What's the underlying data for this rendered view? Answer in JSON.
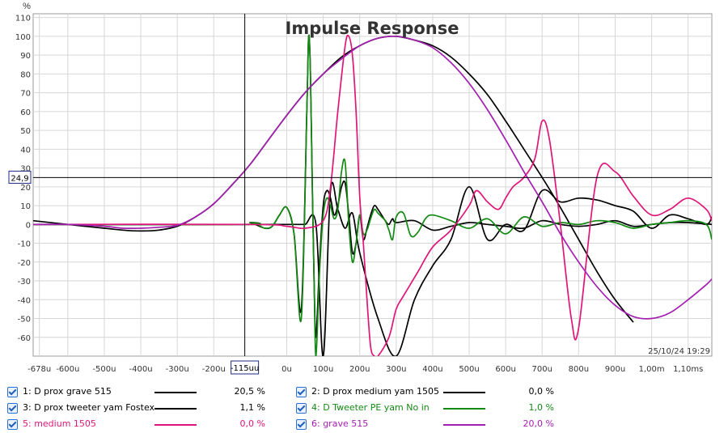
{
  "chart_data": {
    "type": "line",
    "title": "Impulse Response",
    "ylabel": "%",
    "xlim": [
      -0.000695,
      0.001165
    ],
    "ylim": [
      -70,
      112
    ],
    "grid": true,
    "x_ticks": [
      {
        "v": -0.000678,
        "label": "-678u"
      },
      {
        "v": -0.0006,
        "label": "-600u"
      },
      {
        "v": -0.0005,
        "label": "-500u"
      },
      {
        "v": -0.0004,
        "label": "-400u"
      },
      {
        "v": -0.0003,
        "label": "-300u"
      },
      {
        "v": -0.0002,
        "label": "-200u"
      },
      {
        "v": 0,
        "label": "0u"
      },
      {
        "v": 0.0001,
        "label": "100u"
      },
      {
        "v": 0.0002,
        "label": "200u"
      },
      {
        "v": 0.0003,
        "label": "300u"
      },
      {
        "v": 0.0004,
        "label": "400u"
      },
      {
        "v": 0.0005,
        "label": "500u"
      },
      {
        "v": 0.0006,
        "label": "600u"
      },
      {
        "v": 0.0007,
        "label": "700u"
      },
      {
        "v": 0.0008,
        "label": "800u"
      },
      {
        "v": 0.0009,
        "label": "900u"
      },
      {
        "v": 0.001,
        "label": "1,00m"
      },
      {
        "v": 0.0011,
        "label": "1,10ms"
      }
    ],
    "y_ticks": [
      110,
      100,
      90,
      80,
      70,
      60,
      50,
      40,
      30,
      20,
      10,
      0,
      -10,
      -20,
      -30,
      -40,
      -50,
      -60
    ],
    "cursor": {
      "x": -0.000115,
      "x_label": "-115uu",
      "y": 24.9,
      "y_label": "24,9"
    },
    "timestamp": "25/10/24 19:29",
    "series": [
      {
        "name": "1: D prox grave 515",
        "color": "#000000",
        "value_label": "20,5 %",
        "x": [
          -0.000695,
          -0.0006,
          -0.0005,
          -0.00045,
          -0.0004,
          -0.00035,
          -0.0003,
          -0.00025,
          -0.0002,
          -0.00015,
          -0.0001,
          -5e-05,
          0,
          5e-05,
          0.0001,
          0.00015,
          0.0002,
          0.00025,
          0.0003,
          0.00035,
          0.0004,
          0.00045,
          0.0005,
          0.00055,
          0.0006,
          0.00065,
          0.0007,
          0.00075,
          0.0008,
          0.00085,
          0.0009,
          0.00095
        ],
        "y": [
          2,
          0,
          -2,
          -3,
          -3.5,
          -3,
          -1,
          4,
          11,
          21,
          32,
          45,
          58,
          70,
          80,
          89,
          95,
          99,
          100,
          98,
          95,
          89,
          80,
          69,
          55,
          40,
          25,
          9,
          -8,
          -25,
          -40,
          -52
        ]
      },
      {
        "name": "2: D prox medium yam 1505",
        "color": "#000000",
        "value_label": "0,0 %",
        "x": [
          -0.000695,
          -0.0002,
          -0.0001,
          -5e-05,
          0,
          2e-05,
          5e-05,
          8e-05,
          0.0001,
          0.00012,
          0.00014,
          0.00016,
          0.00018,
          0.0002,
          0.00025,
          0.0003,
          0.00035,
          0.0004,
          0.00045,
          0.0005,
          0.00055,
          0.0006,
          0.00065,
          0.0007,
          0.00075,
          0.0008,
          0.00085,
          0.0009,
          0.00095,
          0.001,
          0.00105,
          0.0011,
          0.00115,
          0.001165
        ],
        "y": [
          0,
          0,
          0,
          0,
          0,
          0,
          0,
          0,
          -70,
          18,
          8,
          -2,
          6,
          -15,
          -50,
          -70,
          -40,
          -22,
          -8,
          20,
          -8,
          0,
          -3,
          18,
          12,
          14,
          13,
          10,
          7,
          -2,
          5,
          3,
          0,
          4
        ]
      },
      {
        "name": "3: D prox tweeter yam Fostex",
        "color": "#000000",
        "value_label": "1,1 %",
        "x": [
          -0.000695,
          -0.00012,
          -0.0001,
          -6e-05,
          -4e-05,
          -2e-05,
          0,
          2e-05,
          4e-05,
          5.5e-05,
          6e-05,
          6.5e-05,
          7e-05,
          7.5e-05,
          8e-05,
          9e-05,
          0.0001,
          0.00011,
          0.00012,
          0.00013,
          0.00014,
          0.00015,
          0.00016,
          0.00017,
          0.00018,
          0.00019,
          0.0002,
          0.00021,
          0.00022,
          0.00023,
          0.00024,
          0.00025,
          0.00026,
          0.00027,
          0.00028,
          0.00029,
          0.0003,
          0.00035,
          0.0004,
          0.00045,
          0.0005,
          0.00055,
          0.0006,
          0.00065,
          0.0007,
          0.00075,
          0.0008,
          0.00085,
          0.0009,
          0.00095,
          0.001,
          0.00105,
          0.0011,
          0.001165
        ],
        "y": [
          0,
          0,
          1,
          -2,
          -1,
          5,
          9,
          -5,
          -45,
          60,
          100,
          80,
          20,
          -30,
          -60,
          -20,
          10,
          18,
          14,
          5,
          10,
          20,
          22,
          5,
          -15,
          -10,
          5,
          -8,
          -2,
          5,
          10,
          8,
          5,
          2,
          0,
          3,
          1,
          2,
          -3,
          -1,
          1,
          0,
          -1,
          -2,
          2,
          0,
          -1,
          0,
          2,
          -1,
          0,
          1,
          1,
          0
        ]
      },
      {
        "name": "4: D Tweeter PE yam No in",
        "color": "#138a13",
        "value_label": "1,0 %",
        "x": [
          -0.000695,
          -0.00012,
          -0.0001,
          -8e-05,
          -6e-05,
          -4e-05,
          -2e-05,
          0,
          2e-05,
          4e-05,
          5.5e-05,
          6e-05,
          6.5e-05,
          7e-05,
          7.5e-05,
          8e-05,
          9e-05,
          0.0001,
          0.00011,
          0.00012,
          0.00013,
          0.00014,
          0.00015,
          0.00016,
          0.00017,
          0.00018,
          0.00019,
          0.0002,
          0.00021,
          0.00022,
          0.00023,
          0.00024,
          0.00025,
          0.00026,
          0.00027,
          0.00028,
          0.00029,
          0.0003,
          0.00032,
          0.00034,
          0.00036,
          0.00038,
          0.0004,
          0.00045,
          0.0005,
          0.00055,
          0.0006,
          0.00065,
          0.0007,
          0.00075,
          0.0008,
          0.00085,
          0.0009,
          0.00095,
          0.001,
          0.00105,
          0.0011,
          0.00115,
          0.001165
        ],
        "y": [
          0,
          0,
          1,
          0,
          -2,
          -1,
          5,
          9,
          -5,
          -50,
          60,
          100,
          80,
          20,
          -30,
          -70,
          -25,
          5,
          14,
          10,
          3,
          8,
          28,
          33,
          0,
          -20,
          -10,
          5,
          -5,
          -3,
          3,
          8,
          6,
          4,
          2,
          -3,
          -8,
          4,
          6,
          -6,
          -4,
          3,
          5,
          2,
          -2,
          3,
          -5,
          4,
          -1,
          1,
          0,
          2,
          1,
          -2,
          0,
          1,
          2,
          0,
          -8
        ]
      },
      {
        "name": "5: medium 1505",
        "color": "#e0157a",
        "value_label": "0,0 %",
        "x": [
          -0.000695,
          -0.0001,
          0,
          5e-05,
          0.0001,
          0.00012,
          0.00014,
          0.00016,
          0.00017,
          0.00018,
          0.00019,
          0.0002,
          0.00021,
          0.00022,
          0.00023,
          0.00024,
          0.00025,
          0.00028,
          0.0003,
          0.00032,
          0.00036,
          0.0004,
          0.00045,
          0.0005,
          0.00052,
          0.00055,
          0.00058,
          0.0006,
          0.00062,
          0.00065,
          0.00068,
          0.0007,
          0.00072,
          0.00075,
          0.00078,
          0.0008,
          0.00085,
          0.0009,
          0.00095,
          0.001,
          0.00105,
          0.0011,
          0.00115,
          0.001165
        ],
        "y": [
          0,
          0,
          -1,
          -2,
          2,
          20,
          60,
          95,
          100,
          90,
          60,
          15,
          -10,
          -40,
          -65,
          -70,
          -70,
          -60,
          -45,
          -38,
          -25,
          -12,
          -3,
          10,
          18,
          12,
          8,
          14,
          20,
          25,
          35,
          55,
          45,
          0,
          -50,
          -55,
          25,
          28,
          15,
          5,
          8,
          14,
          8,
          2
        ]
      },
      {
        "name": "6: grave 515",
        "color": "#a31fb0",
        "value_label": "20,0 %",
        "x": [
          -0.000695,
          -0.0006,
          -0.0005,
          -0.00045,
          -0.0004,
          -0.00035,
          -0.0003,
          -0.00025,
          -0.0002,
          -0.00015,
          -0.0001,
          -5e-05,
          0,
          5e-05,
          0.0001,
          0.00015,
          0.0002,
          0.00025,
          0.0003,
          0.00035,
          0.0004,
          0.00045,
          0.0005,
          0.00055,
          0.0006,
          0.00065,
          0.0007,
          0.00075,
          0.0008,
          0.00085,
          0.0009,
          0.00095,
          0.001,
          0.00105,
          0.0011,
          0.00115,
          0.001165
        ],
        "y": [
          0,
          0,
          -1,
          -2,
          -2,
          -1.5,
          -0.5,
          4,
          11,
          21,
          32,
          45,
          58,
          70,
          80,
          88,
          95,
          99,
          100,
          98,
          94,
          86,
          75,
          61,
          45,
          28,
          12,
          -5,
          -20,
          -33,
          -43,
          -49,
          -50,
          -47,
          -40,
          -32,
          -29
        ]
      }
    ]
  }
}
